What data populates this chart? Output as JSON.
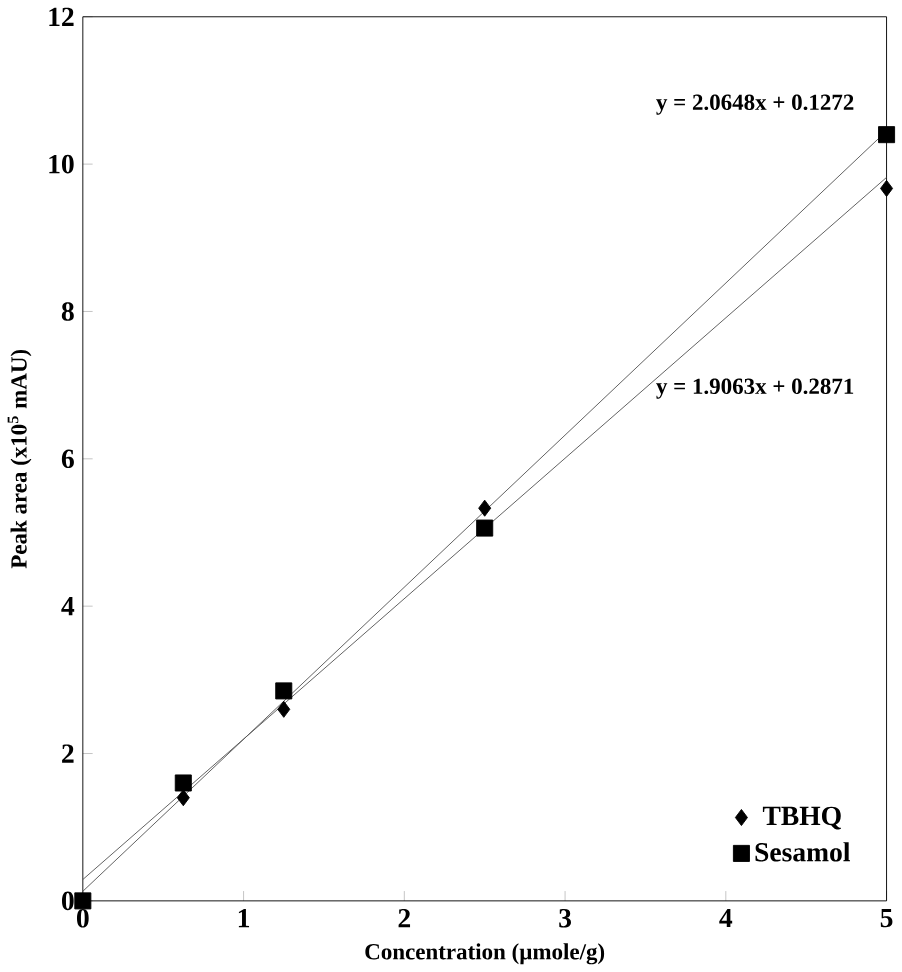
{
  "chart_data": {
    "type": "scatter",
    "xlabel": "Concentration (µmole/g)",
    "ylabel": "Peak area (x10$^{5}$ mAU)",
    "xlim": [
      0,
      5
    ],
    "ylim": [
      0,
      12
    ],
    "xticks": [
      0,
      1,
      2,
      3,
      4,
      5
    ],
    "yticks": [
      0,
      2,
      4,
      6,
      8,
      10,
      12
    ],
    "legend": "bottom right",
    "grid": false,
    "series": [
      {
        "name": "TBHQ",
        "marker": "diamond",
        "color": "#000000",
        "x": [
          0.625,
          1.25,
          2.5,
          5
        ],
        "values": [
          1.4,
          2.6,
          5.33,
          9.67
        ]
      },
      {
        "name": "Sesamol",
        "marker": "square",
        "color": "#000000",
        "x": [
          0,
          0.625,
          1.25,
          2.5,
          5
        ],
        "values": [
          0,
          1.6,
          2.85,
          5.06,
          10.4
        ]
      },
      {
        "type": "line",
        "marker": "none",
        "color": "#555555",
        "x": [
          0,
          5
        ],
        "values": [
          0.29,
          9.82
        ]
      },
      {
        "type": "line",
        "marker": "none",
        "color": "#555555",
        "x": [
          0,
          5
        ],
        "values": [
          0.13,
          10.45
        ]
      }
    ],
    "annotations": [
      "y = 2.0648x + 0.1272",
      "y = 1.9063x + 0.2871"
    ]
  }
}
